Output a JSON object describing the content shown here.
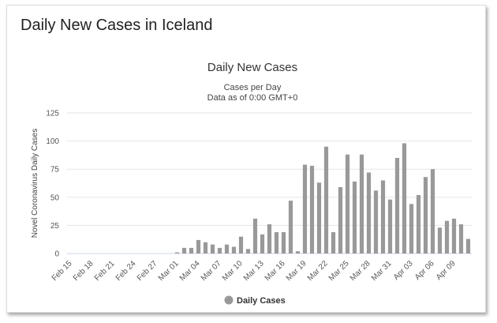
{
  "page": {
    "title": "Daily New Cases in Iceland"
  },
  "chart_data": {
    "type": "bar",
    "title": "Daily New Cases",
    "subtitle_lines": [
      "Cases per Day",
      "Data as of 0:00 GMT+0"
    ],
    "xlabel": "",
    "ylabel": "Novel Coronavirus Daily Cases",
    "ylim": [
      0,
      125
    ],
    "yticks": [
      0,
      25,
      50,
      75,
      100,
      125
    ],
    "grid": true,
    "legend_position": "bottom",
    "color": "#999999",
    "categories": [
      "Feb 15",
      "Feb 16",
      "Feb 17",
      "Feb 18",
      "Feb 19",
      "Feb 20",
      "Feb 21",
      "Feb 22",
      "Feb 23",
      "Feb 24",
      "Feb 25",
      "Feb 26",
      "Feb 27",
      "Feb 28",
      "Feb 29",
      "Mar 01",
      "Mar 02",
      "Mar 03",
      "Mar 04",
      "Mar 05",
      "Mar 06",
      "Mar 07",
      "Mar 08",
      "Mar 09",
      "Mar 10",
      "Mar 11",
      "Mar 12",
      "Mar 13",
      "Mar 14",
      "Mar 15",
      "Mar 16",
      "Mar 17",
      "Mar 18",
      "Mar 19",
      "Mar 20",
      "Mar 21",
      "Mar 22",
      "Mar 23",
      "Mar 24",
      "Mar 25",
      "Mar 26",
      "Mar 27",
      "Mar 28",
      "Mar 29",
      "Mar 30",
      "Mar 31",
      "Apr 01",
      "Apr 02",
      "Apr 03",
      "Apr 04",
      "Apr 05",
      "Apr 06",
      "Apr 07",
      "Apr 08",
      "Apr 09",
      "Apr 10",
      "Apr 11"
    ],
    "tick_labels": [
      "Feb 15",
      "Feb 18",
      "Feb 21",
      "Feb 24",
      "Feb 27",
      "Mar 01",
      "Mar 04",
      "Mar 07",
      "Mar 10",
      "Mar 13",
      "Mar 16",
      "Mar 19",
      "Mar 22",
      "Mar 25",
      "Mar 28",
      "Mar 31",
      "Apr 03",
      "Apr 06",
      "Apr 09"
    ],
    "series": [
      {
        "name": "Daily Cases",
        "values": [
          0,
          0,
          0,
          0,
          0,
          0,
          0,
          0,
          0,
          0,
          0,
          0,
          0,
          0,
          0,
          1,
          5,
          5,
          12,
          10,
          8,
          5,
          8,
          6,
          15,
          4,
          31,
          17,
          26,
          19,
          19,
          47,
          2,
          79,
          78,
          63,
          95,
          19,
          59,
          88,
          64,
          88,
          72,
          56,
          65,
          48,
          85,
          98,
          44,
          52,
          68,
          75,
          23,
          29,
          31,
          26,
          13
        ]
      }
    ]
  }
}
